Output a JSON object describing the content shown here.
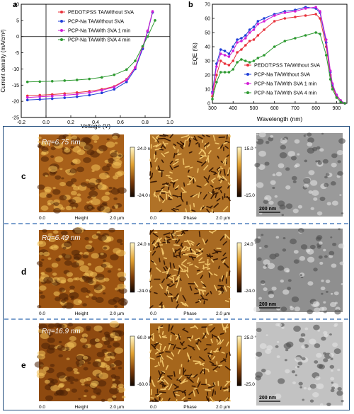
{
  "chart_data": [
    {
      "panel": "a",
      "type": "line",
      "xlabel": "Voltage (V)",
      "ylabel": "Current density (mA/cm²)",
      "xlim": [
        -0.2,
        1.0
      ],
      "ylim": [
        -25,
        10
      ],
      "xticks": [
        "-0.2",
        "0.0",
        "0.2",
        "0.4",
        "0.6",
        "0.8",
        "1.0"
      ],
      "yticks": [
        "10",
        "5",
        "0",
        "-5",
        "-10",
        "-15",
        "-20",
        "-25"
      ],
      "legend_position": "top-right",
      "series": [
        {
          "name": "PEDOT:PSS TA/Without SVA",
          "color": "#e8323b",
          "marker": "circle",
          "x": [
            -0.15,
            -0.05,
            0.05,
            0.15,
            0.25,
            0.35,
            0.45,
            0.55,
            0.65,
            0.72,
            0.78,
            0.82,
            0.86
          ],
          "y": [
            -18.3,
            -18.1,
            -17.9,
            -17.6,
            -17.3,
            -16.9,
            -16.3,
            -15.4,
            -13.2,
            -9.5,
            -3.6,
            1.5,
            7.5
          ]
        },
        {
          "name": "PCP-Na TA/Without SVA",
          "color": "#1f3fd8",
          "marker": "circle",
          "x": [
            -0.15,
            -0.05,
            0.05,
            0.15,
            0.25,
            0.35,
            0.45,
            0.55,
            0.65,
            0.72,
            0.78,
            0.82,
            0.86
          ],
          "y": [
            -19.6,
            -19.4,
            -19.2,
            -18.9,
            -18.6,
            -18.1,
            -17.4,
            -16.3,
            -14.0,
            -10.0,
            -3.8,
            1.5,
            7.5
          ]
        },
        {
          "name": "PCP-Na TA/With SVA 1 min",
          "color": "#d21dd6",
          "marker": "circle",
          "x": [
            -0.15,
            -0.05,
            0.05,
            0.15,
            0.25,
            0.35,
            0.45,
            0.55,
            0.65,
            0.72,
            0.78,
            0.82,
            0.86
          ],
          "y": [
            -18.8,
            -18.6,
            -18.4,
            -18.1,
            -17.8,
            -17.3,
            -16.6,
            -15.6,
            -13.4,
            -9.6,
            -3.2,
            1.8,
            7.8
          ]
        },
        {
          "name": "PCP-Na TA/With SVA 4 min",
          "color": "#2e9a31",
          "marker": "circle",
          "x": [
            -0.15,
            -0.05,
            0.05,
            0.15,
            0.25,
            0.35,
            0.45,
            0.55,
            0.65,
            0.72,
            0.78,
            0.82,
            0.88
          ],
          "y": [
            -14.0,
            -13.9,
            -13.8,
            -13.6,
            -13.4,
            -13.1,
            -12.6,
            -11.8,
            -10.2,
            -7.5,
            -3.0,
            0.0,
            5.0
          ]
        }
      ]
    },
    {
      "panel": "b",
      "type": "line",
      "xlabel": "Wavelength (nm)",
      "ylabel": "EQE (%)",
      "xlim": [
        300,
        950
      ],
      "ylim": [
        0,
        70
      ],
      "xticks": [
        "300",
        "400",
        "500",
        "600",
        "700",
        "800",
        "900"
      ],
      "yticks": [
        "0",
        "10",
        "20",
        "30",
        "40",
        "50",
        "60",
        "70"
      ],
      "legend_position": "bottom-right",
      "series": [
        {
          "name": "PEDOT:PSS TA/Without SVA",
          "color": "#e8323b",
          "marker": "circle",
          "x": [
            300,
            320,
            340,
            360,
            380,
            400,
            420,
            440,
            460,
            480,
            500,
            520,
            550,
            600,
            650,
            700,
            750,
            800,
            820,
            850,
            870,
            880,
            900,
            920,
            940
          ],
          "y": [
            5,
            20,
            30,
            28,
            27,
            30,
            36,
            38,
            41,
            44,
            45,
            48,
            52,
            58,
            60,
            61,
            62,
            63,
            60,
            40,
            20,
            12,
            5,
            2,
            0
          ]
        },
        {
          "name": "PCP-Na TA/Without SVA",
          "color": "#1f3fd8",
          "marker": "circle",
          "x": [
            300,
            320,
            340,
            360,
            380,
            400,
            420,
            440,
            460,
            480,
            500,
            520,
            550,
            600,
            650,
            700,
            750,
            800,
            820,
            850,
            870,
            880,
            900,
            920,
            940
          ],
          "y": [
            8,
            28,
            38,
            37,
            35,
            40,
            45,
            46,
            48,
            52,
            54,
            58,
            60,
            63,
            65,
            66,
            68,
            67,
            64,
            43,
            22,
            13,
            6,
            2,
            0
          ]
        },
        {
          "name": "PCP-Na TA/With SVA 1 min",
          "color": "#d21dd6",
          "marker": "circle",
          "x": [
            300,
            320,
            340,
            360,
            380,
            400,
            420,
            440,
            460,
            480,
            500,
            520,
            550,
            600,
            650,
            700,
            750,
            800,
            820,
            850,
            870,
            880,
            900,
            920,
            940
          ],
          "y": [
            7,
            26,
            35,
            34,
            33,
            37,
            43,
            44,
            46,
            50,
            52,
            56,
            58,
            62,
            64,
            65,
            67,
            68,
            65,
            45,
            23,
            14,
            6,
            2,
            0
          ]
        },
        {
          "name": "PCP-Na TA/With SVA 4 min",
          "color": "#2e9a31",
          "marker": "circle",
          "x": [
            300,
            320,
            340,
            360,
            380,
            400,
            420,
            440,
            460,
            480,
            500,
            520,
            550,
            600,
            650,
            700,
            750,
            800,
            820,
            850,
            870,
            880,
            900,
            920,
            940
          ],
          "y": [
            3,
            15,
            22,
            22,
            22,
            24,
            29,
            31,
            30,
            29,
            30,
            32,
            34,
            40,
            44,
            46,
            48,
            50,
            49,
            34,
            17,
            10,
            4,
            1,
            0
          ]
        }
      ]
    }
  ],
  "afm_rows": [
    {
      "label": "c",
      "rq": "6.75 nm",
      "height_max": "24.0 nm",
      "height_min": "-24.0 nm",
      "phase_max": "15.0 °",
      "phase_min": "-15.0 °",
      "sem_scale": "200 nm",
      "base": "#a8601a",
      "phase_base": "#b07227",
      "sem_base": "#9a9a9a"
    },
    {
      "label": "d",
      "rq": "6.49 nm",
      "height_max": "24.0 nm",
      "height_min": "-24.0 nm",
      "phase_max": "24.0 °",
      "phase_min": "-24.0 °",
      "sem_scale": "200 nm",
      "base": "#9c5412",
      "phase_base": "#a86a22",
      "sem_base": "#8f8f8f"
    },
    {
      "label": "e",
      "rq": "16.9 nm",
      "height_max": "60.0 nm",
      "height_min": "-60.0 nm",
      "phase_max": "25.0 °",
      "phase_min": "-25.0 °",
      "sem_scale": "200 nm",
      "base": "#8e4a10",
      "phase_base": "#a5661c",
      "sem_base": "#c2c2c2"
    }
  ],
  "afm_axis": {
    "start": "0.0",
    "end": "2.0 µm",
    "height_caption": "Height",
    "phase_caption": "Phase"
  },
  "panel_letters": {
    "a": "a",
    "b": "b"
  }
}
